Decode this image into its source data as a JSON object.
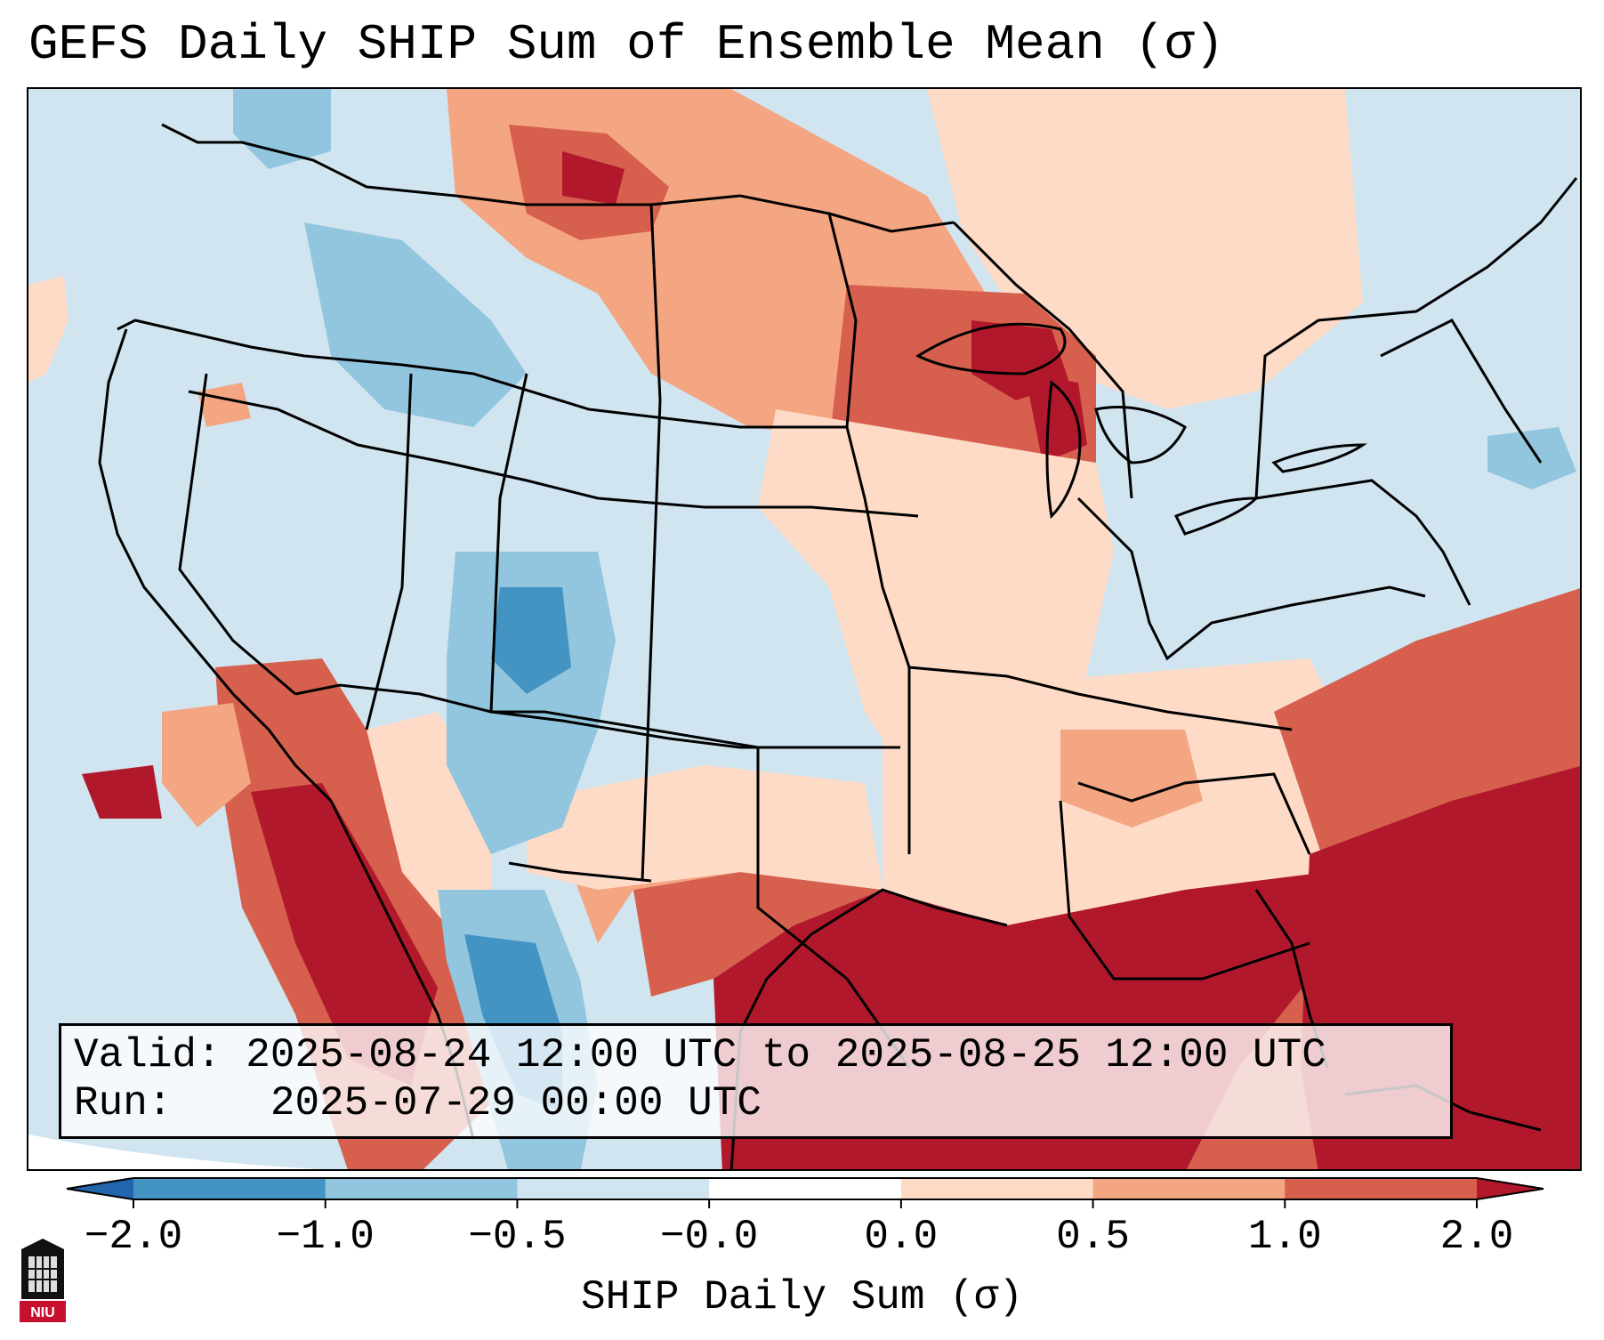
{
  "title": "GEFS Daily SHIP Sum of Ensemble Mean (σ)",
  "info": {
    "valid_label": "Valid:",
    "valid_value": "2025-08-24 12:00 UTC to 2025-08-25 12:00 UTC",
    "run_label": "Run:",
    "run_value": "2025-07-29 00:00 UTC"
  },
  "colorbar": {
    "label": "SHIP Daily Sum (σ)",
    "ticks": [
      "−2.0",
      "−1.0",
      "−0.5",
      "−0.0",
      "0.0",
      "0.5",
      "1.0",
      "2.0"
    ],
    "colors": [
      "#2166ac",
      "#4393c3",
      "#92c5de",
      "#d1e5f0",
      "#ffffff",
      "#fddbc7",
      "#f4a582",
      "#d6604d",
      "#b2182b"
    ],
    "extend": "both"
  },
  "logo": {
    "text": "NIU"
  },
  "legend_colors": {
    "strong_negative": "#4393c3",
    "weak_negative": "#d1e5f0",
    "weak_positive": "#fddbc7",
    "moderate_positive": "#f4a582",
    "strong_positive": "#d6604d",
    "extreme_positive": "#b2182b"
  }
}
